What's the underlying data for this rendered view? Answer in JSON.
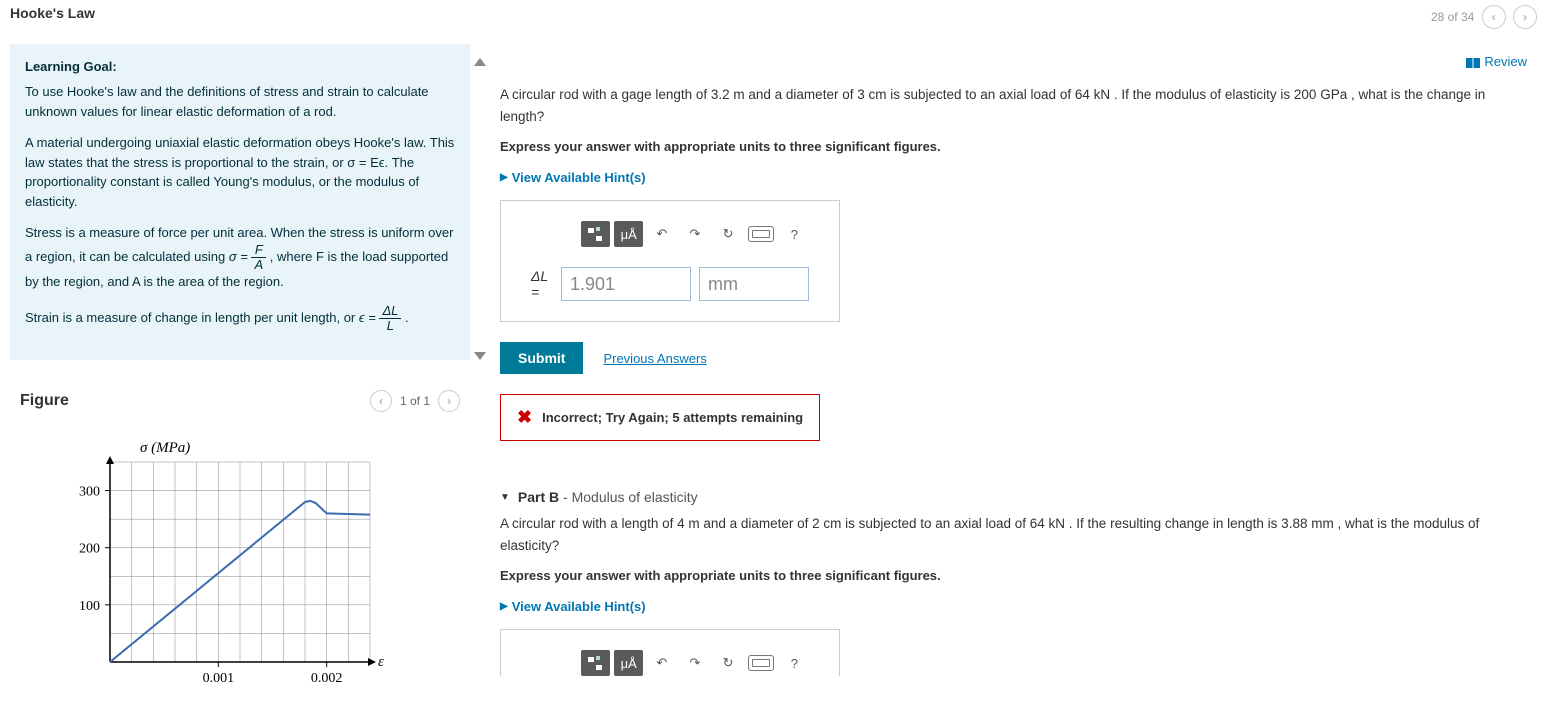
{
  "header": {
    "title": "Hooke's Law",
    "page_counter": "28 of 34"
  },
  "learning": {
    "heading": "Learning Goal:",
    "p1": "To use Hooke's law and the definitions of stress and strain to calculate unknown values for linear elastic deformation of a rod.",
    "p2": "A material undergoing uniaxial elastic deformation obeys Hooke's law. This law states that the stress is proportional to the strain, or σ = Eϵ. The proportionality constant is called Young's modulus, or the modulus of elasticity.",
    "p3a": "Stress is a measure of force per unit area. When the stress is uniform over a region, it can be calculated using ",
    "p3b": ", where F is the load supported by the region, and A is the area of the region.",
    "p4": "Strain is a measure of change in length per unit length, or "
  },
  "figure": {
    "heading": "Figure",
    "nav": "1 of 1",
    "chart": {
      "y_label": "σ (MPa)",
      "x_label": "ε",
      "y_ticks": [
        100,
        200,
        300
      ],
      "x_ticks": [
        "0.001",
        "0.002"
      ],
      "ylim": [
        0,
        350
      ],
      "xlim": [
        0,
        0.0024
      ],
      "line_color": "#3a6bb3",
      "grid_color": "#888",
      "points": [
        [
          0,
          0
        ],
        [
          0.0018,
          280
        ],
        [
          0.00185,
          282
        ],
        [
          0.0019,
          278
        ],
        [
          0.002,
          260
        ],
        [
          0.0024,
          258
        ]
      ]
    }
  },
  "review": "Review",
  "partA": {
    "question": "A circular rod with a gage length of 3.2 m and a diameter of 3 cm is subjected to an axial load of 64 kN . If the modulus of elasticity is 200 GPa , what is the change in length?",
    "instruction": "Express your answer with appropriate units to three significant figures.",
    "hints": "View Available Hint(s)",
    "answer_label": "ΔL =",
    "answer_value": "1.901",
    "answer_unit": "mm",
    "tool_units": "μÅ",
    "tool_help": "?",
    "submit": "Submit",
    "prev": "Previous Answers",
    "feedback": "Incorrect; Try Again; 5 attempts remaining"
  },
  "partB": {
    "header_label": "Part B",
    "header_title": " - Modulus of elasticity",
    "question": "A circular rod with a length of 4 m and a diameter of 2 cm is subjected to an axial load of 64 kN . If the resulting change in length is 3.88 mm , what is the modulus of elasticity?",
    "instruction": "Express your answer with appropriate units to three significant figures.",
    "hints": "View Available Hint(s)",
    "tool_units": "μÅ",
    "tool_help": "?"
  }
}
